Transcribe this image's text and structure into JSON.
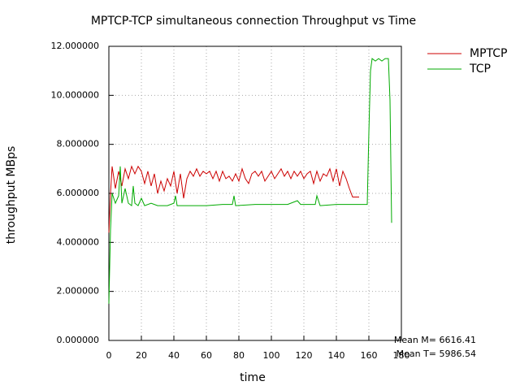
{
  "chart_data": {
    "type": "line",
    "title": "MPTCP-TCP simultaneous connection Throughput vs Time",
    "x_label": "time",
    "y_label": "throughput MBps",
    "annotations": [
      "Mean M= 6616.41",
      "Mean T= 5986.54"
    ],
    "xlim": [
      0,
      180
    ],
    "xticks": [
      0,
      20,
      40,
      60,
      80,
      100,
      120,
      140,
      160,
      180
    ],
    "ylim": [
      0,
      12
    ],
    "yticks": [
      {
        "value": 0,
        "label": "0.000000"
      },
      {
        "value": 2,
        "label": "2.000000"
      },
      {
        "value": 4,
        "label": "4.000000"
      },
      {
        "value": 6,
        "label": "6.000000"
      },
      {
        "value": 8,
        "label": "8.000000"
      },
      {
        "value": 10,
        "label": "10.000000"
      },
      {
        "value": 12,
        "label": "12.000000"
      }
    ],
    "grid": true,
    "legend": "top-right",
    "series": [
      {
        "name": "MPTCP",
        "color": "#cc0000",
        "x": [
          0,
          1,
          2,
          4,
          6,
          8,
          10,
          12,
          14,
          16,
          18,
          20,
          22,
          24,
          26,
          28,
          30,
          32,
          34,
          36,
          38,
          40,
          42,
          44,
          46,
          48,
          50,
          52,
          54,
          56,
          58,
          60,
          62,
          64,
          66,
          68,
          70,
          72,
          74,
          76,
          78,
          80,
          82,
          84,
          86,
          88,
          90,
          92,
          94,
          96,
          98,
          100,
          102,
          104,
          106,
          108,
          110,
          112,
          114,
          116,
          118,
          120,
          122,
          124,
          126,
          128,
          130,
          132,
          134,
          136,
          138,
          140,
          142,
          144,
          146,
          148,
          150,
          152,
          154
        ],
        "values": [
          4.4,
          6.0,
          7.1,
          6.2,
          6.9,
          6.3,
          7.0,
          6.6,
          7.1,
          6.8,
          7.1,
          6.9,
          6.4,
          6.9,
          6.3,
          6.8,
          6.0,
          6.5,
          6.1,
          6.6,
          6.3,
          6.9,
          6.0,
          6.8,
          5.8,
          6.6,
          6.9,
          6.7,
          7.0,
          6.7,
          6.9,
          6.8,
          6.9,
          6.6,
          6.9,
          6.5,
          6.9,
          6.6,
          6.7,
          6.5,
          6.8,
          6.5,
          7.0,
          6.6,
          6.4,
          6.8,
          6.9,
          6.7,
          6.9,
          6.5,
          6.7,
          6.9,
          6.6,
          6.8,
          7.0,
          6.7,
          6.9,
          6.6,
          6.9,
          6.7,
          6.9,
          6.6,
          6.8,
          6.9,
          6.4,
          6.9,
          6.5,
          6.8,
          6.7,
          7.0,
          6.5,
          7.0,
          6.3,
          6.9,
          6.6,
          6.2,
          5.85,
          5.85,
          5.85
        ]
      },
      {
        "name": "TCP",
        "color": "#00aa00",
        "x": [
          0,
          1,
          2,
          4,
          6,
          7,
          8,
          10,
          12,
          14,
          15,
          16,
          18,
          20,
          22,
          26,
          30,
          36,
          40,
          41,
          42,
          50,
          60,
          70,
          76,
          77,
          78,
          90,
          100,
          110,
          116,
          118,
          127,
          128,
          130,
          140,
          150,
          159,
          160,
          161,
          162,
          164,
          166,
          168,
          170,
          172,
          173,
          174
        ],
        "values": [
          1.5,
          4.5,
          6.0,
          5.6,
          5.9,
          7.1,
          5.6,
          6.2,
          5.6,
          5.5,
          6.3,
          5.6,
          5.5,
          5.8,
          5.5,
          5.6,
          5.5,
          5.5,
          5.6,
          5.9,
          5.5,
          5.5,
          5.5,
          5.55,
          5.55,
          5.9,
          5.5,
          5.55,
          5.55,
          5.55,
          5.7,
          5.55,
          5.55,
          5.9,
          5.5,
          5.55,
          5.55,
          5.55,
          8.5,
          11.0,
          11.5,
          11.4,
          11.5,
          11.4,
          11.5,
          11.5,
          9.8,
          4.8
        ]
      }
    ]
  }
}
